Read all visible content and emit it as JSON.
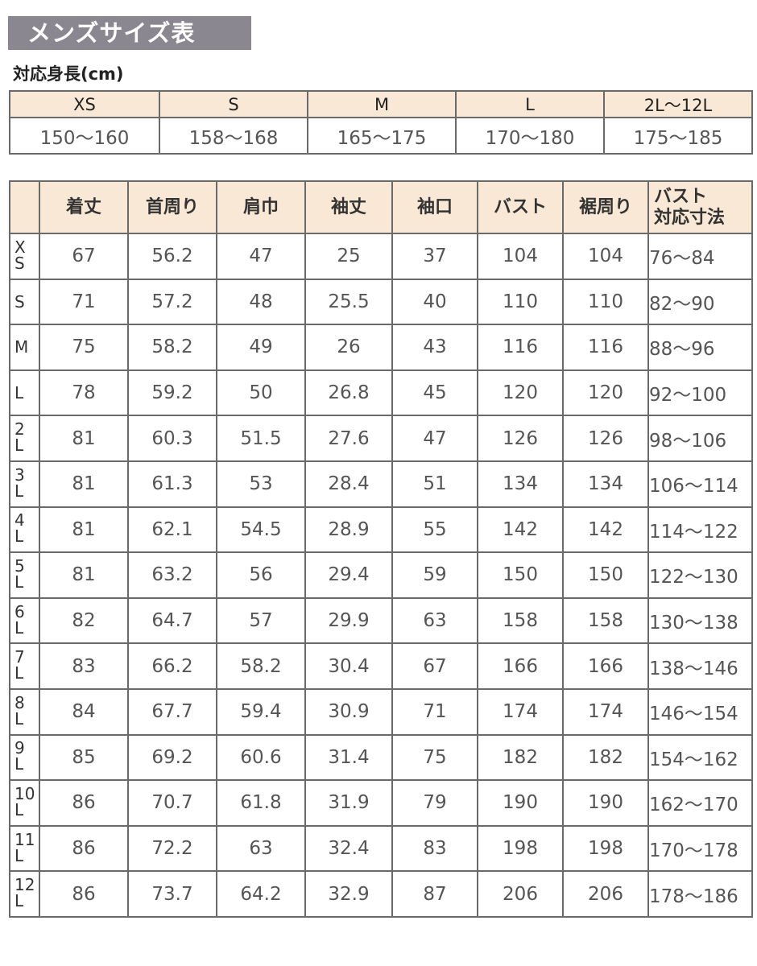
{
  "title": "メンズサイズ表",
  "height_table": {
    "label": "対応身長(cm)",
    "sizes": [
      "XS",
      "S",
      "M",
      "L",
      "2L〜12L"
    ],
    "ranges": [
      "150〜160",
      "158〜168",
      "165〜175",
      "170〜180",
      "175〜185"
    ]
  },
  "size_table": {
    "headers": [
      "",
      "着丈",
      "首周り",
      "肩巾",
      "袖丈",
      "袖口",
      "バスト",
      "裾周り",
      "バスト\n対応寸法"
    ],
    "rows": [
      {
        "size": "XS",
        "values": [
          "67",
          "56.2",
          "47",
          "25",
          "37",
          "104",
          "104",
          "76〜84"
        ]
      },
      {
        "size": "S",
        "values": [
          "71",
          "57.2",
          "48",
          "25.5",
          "40",
          "110",
          "110",
          "82〜90"
        ]
      },
      {
        "size": "M",
        "values": [
          "75",
          "58.2",
          "49",
          "26",
          "43",
          "116",
          "116",
          "88〜96"
        ]
      },
      {
        "size": "L",
        "values": [
          "78",
          "59.2",
          "50",
          "26.8",
          "45",
          "120",
          "120",
          "92〜100"
        ]
      },
      {
        "size": "2L",
        "values": [
          "81",
          "60.3",
          "51.5",
          "27.6",
          "47",
          "126",
          "126",
          "98〜106"
        ]
      },
      {
        "size": "3L",
        "values": [
          "81",
          "61.3",
          "53",
          "28.4",
          "51",
          "134",
          "134",
          "106〜114"
        ]
      },
      {
        "size": "4L",
        "values": [
          "81",
          "62.1",
          "54.5",
          "28.9",
          "55",
          "142",
          "142",
          "114〜122"
        ]
      },
      {
        "size": "5L",
        "values": [
          "81",
          "63.2",
          "56",
          "29.4",
          "59",
          "150",
          "150",
          "122〜130"
        ]
      },
      {
        "size": "6L",
        "values": [
          "82",
          "64.7",
          "57",
          "29.9",
          "63",
          "158",
          "158",
          "130〜138"
        ]
      },
      {
        "size": "7L",
        "values": [
          "83",
          "66.2",
          "58.2",
          "30.4",
          "67",
          "166",
          "166",
          "138〜146"
        ]
      },
      {
        "size": "8L",
        "values": [
          "84",
          "67.7",
          "59.4",
          "30.9",
          "71",
          "174",
          "174",
          "146〜154"
        ]
      },
      {
        "size": "9L",
        "values": [
          "85",
          "69.2",
          "60.6",
          "31.4",
          "75",
          "182",
          "182",
          "154〜162"
        ]
      },
      {
        "size": "10L",
        "values": [
          "86",
          "70.7",
          "61.8",
          "31.9",
          "79",
          "190",
          "190",
          "162〜170"
        ]
      },
      {
        "size": "11L",
        "values": [
          "86",
          "72.2",
          "63",
          "32.4",
          "83",
          "198",
          "198",
          "170〜178"
        ]
      },
      {
        "size": "12L",
        "values": [
          "86",
          "73.7",
          "64.2",
          "32.9",
          "87",
          "206",
          "206",
          "178〜186"
        ]
      }
    ]
  },
  "colors": {
    "title_bg": "#8b8790",
    "header_bg": "#f9e8d5",
    "border": "#6a6a6a"
  }
}
